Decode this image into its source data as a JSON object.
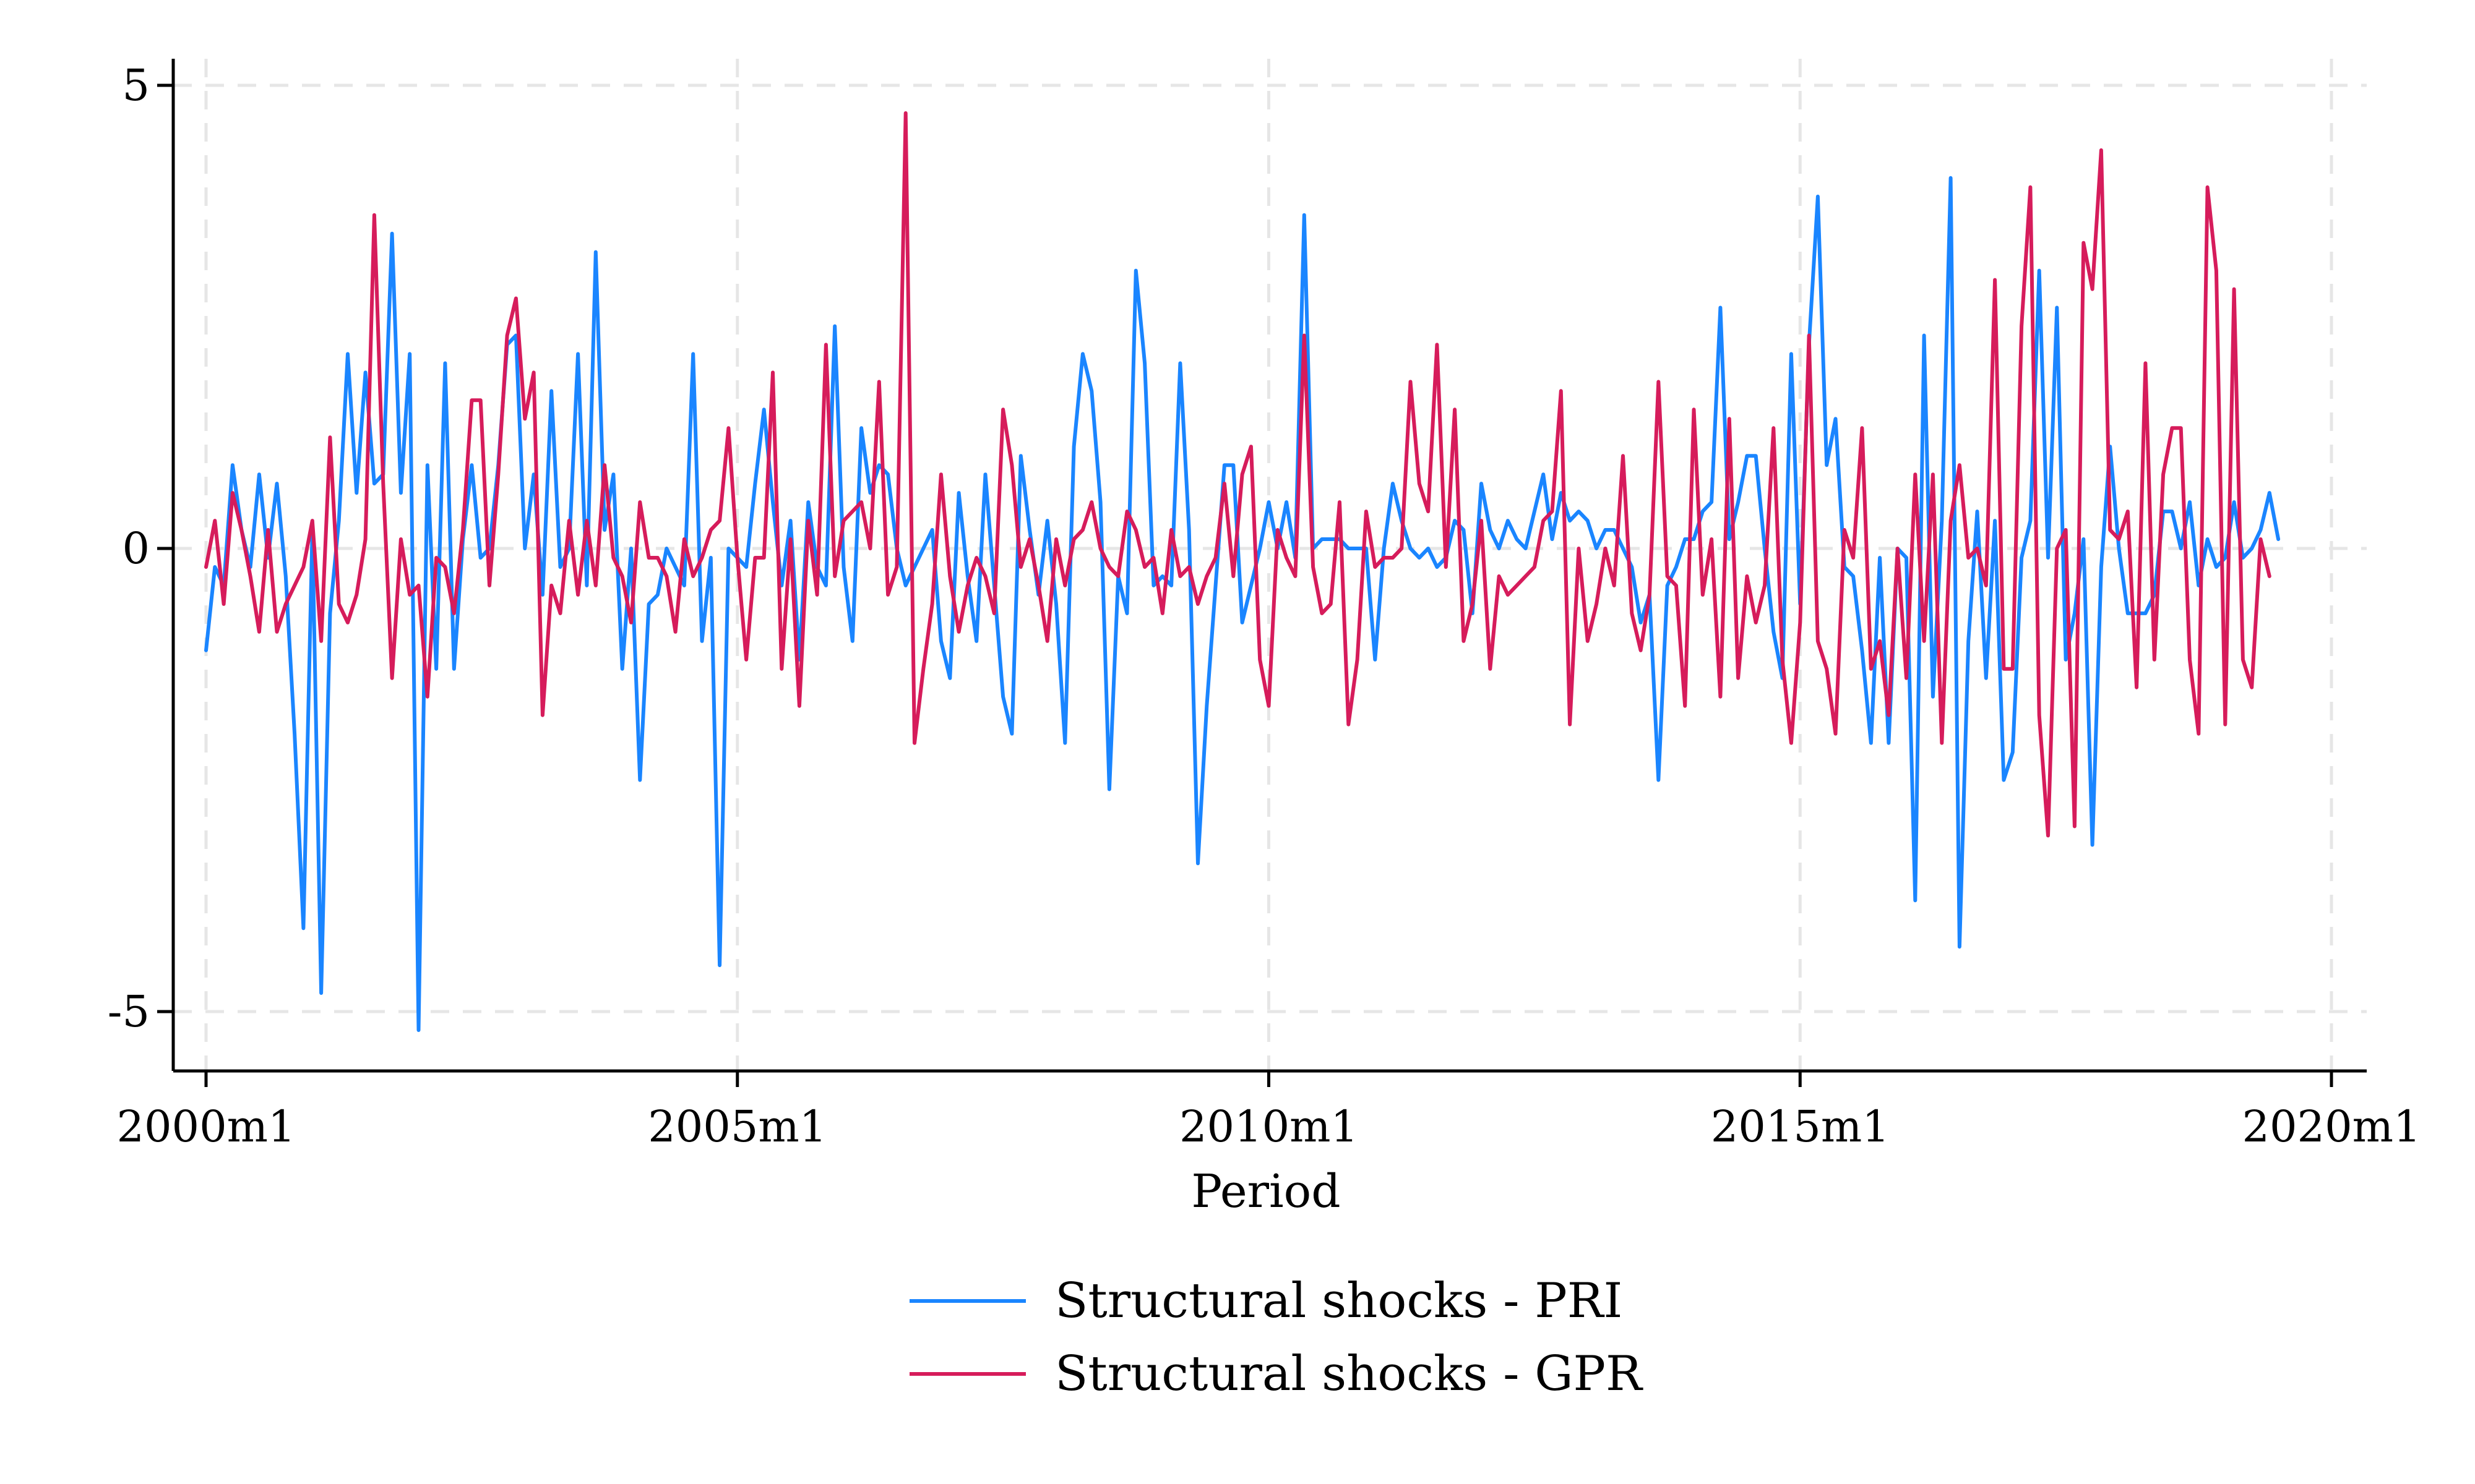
{
  "chart_data": {
    "type": "line",
    "title": "",
    "xlabel": "Period",
    "ylabel": "",
    "xlim": [
      "2000m1",
      "2020m1"
    ],
    "ylim": [
      -5.6,
      5.2
    ],
    "x_ticks": [
      "2000m1",
      "2005m1",
      "2010m1",
      "2015m1",
      "2020m1"
    ],
    "y_ticks": [
      {
        "value": 5,
        "label": "5"
      },
      {
        "value": 0,
        "label": "0"
      },
      {
        "value": -5,
        "label": "-5"
      }
    ],
    "grid": true,
    "legend_position": "bottom",
    "x_start": "2000m1",
    "x_frequency": "monthly",
    "series": [
      {
        "name": "Structural shocks - PRI",
        "color": "#1a85ff",
        "values": [
          -1.1,
          -0.2,
          -0.4,
          0.9,
          0.2,
          -0.2,
          0.8,
          -0.1,
          0.7,
          -0.3,
          -2.0,
          -4.1,
          0.2,
          -4.8,
          -0.7,
          0.3,
          2.1,
          0.6,
          1.9,
          0.7,
          0.8,
          3.4,
          0.6,
          2.1,
          -5.2,
          0.9,
          -1.3,
          2.0,
          -1.3,
          0.1,
          0.9,
          -0.1,
          0.0,
          0.9,
          2.2,
          2.3,
          0.0,
          0.8,
          -0.5,
          1.7,
          -0.2,
          0.0,
          2.1,
          -0.4,
          3.2,
          0.2,
          0.8,
          -1.3,
          0.0,
          -2.5,
          -0.6,
          -0.5,
          0.0,
          -0.2,
          -0.4,
          2.1,
          -1.0,
          -0.1,
          -4.5,
          0.0,
          -0.1,
          -0.2,
          0.7,
          1.5,
          0.5,
          -0.4,
          0.3,
          -1.2,
          0.5,
          -0.2,
          -0.4,
          2.4,
          -0.2,
          -1.0,
          1.3,
          0.6,
          0.9,
          0.8,
          0.0,
          -0.4,
          -0.2,
          0.0,
          0.2,
          -1.0,
          -1.4,
          0.6,
          -0.3,
          -1.0,
          0.8,
          -0.4,
          -1.6,
          -2.0,
          1.0,
          0.2,
          -0.5,
          0.3,
          -0.6,
          -2.1,
          1.1,
          2.1,
          1.7,
          0.5,
          -2.6,
          -0.3,
          -0.7,
          3.0,
          2.0,
          -0.4,
          -0.3,
          -0.4,
          2.0,
          0.2,
          -3.4,
          -1.7,
          -0.4,
          0.9,
          0.9,
          -0.8,
          -0.4,
          0.0,
          0.5,
          0.0,
          0.5,
          -0.1,
          3.6,
          0.0,
          0.1,
          0.1,
          0.1,
          0.0,
          0.0,
          0.0,
          -1.2,
          0.0,
          0.7,
          0.3,
          0.0,
          -0.1,
          0.0,
          -0.2,
          -0.1,
          0.3,
          0.2,
          -0.7,
          0.7,
          0.2,
          0.0,
          0.3,
          0.1,
          0.0,
          0.4,
          0.8,
          0.1,
          0.6,
          0.3,
          0.4,
          0.3,
          0.0,
          0.2,
          0.2,
          0.0,
          -0.2,
          -0.8,
          -0.5,
          -2.5,
          -0.4,
          -0.2,
          0.1,
          0.1,
          0.4,
          0.5,
          2.6,
          0.1,
          0.5,
          1.0,
          1.0,
          0.0,
          -0.9,
          -1.4,
          2.1,
          -0.6,
          2.2,
          3.8,
          0.9,
          1.4,
          -0.2,
          -0.3,
          -1.1,
          -2.1,
          -0.1,
          -2.1,
          0.0,
          -0.1,
          -3.8,
          2.3,
          -1.6,
          0.3,
          4.0,
          -4.3,
          -1.0,
          0.4,
          -1.4,
          0.3,
          -2.5,
          -2.2,
          -0.1,
          0.3,
          3.0,
          -0.1,
          2.6,
          -1.2,
          -0.7,
          0.1,
          -3.2,
          -0.2,
          1.1,
          0.0,
          -0.7,
          -0.7,
          -0.7,
          -0.5,
          0.4,
          0.4,
          0.0,
          0.5,
          -0.4,
          0.1,
          -0.2,
          -0.1,
          0.5,
          -0.1,
          0.0,
          0.2,
          0.6,
          0.1
        ]
      },
      {
        "name": "Structural shocks - GPR",
        "color": "#d61c5b",
        "values": [
          -0.2,
          0.3,
          -0.6,
          0.6,
          0.2,
          -0.3,
          -0.9,
          0.2,
          -0.9,
          -0.6,
          -0.4,
          -0.2,
          0.3,
          -1.0,
          1.2,
          -0.6,
          -0.8,
          -0.5,
          0.1,
          3.6,
          0.7,
          -1.4,
          0.1,
          -0.5,
          -0.4,
          -1.6,
          -0.1,
          -0.2,
          -0.7,
          0.2,
          1.6,
          1.6,
          -0.4,
          0.8,
          2.3,
          2.7,
          1.4,
          1.9,
          -1.8,
          -0.4,
          -0.7,
          0.3,
          -0.5,
          0.3,
          -0.4,
          0.9,
          -0.1,
          -0.3,
          -0.8,
          0.5,
          -0.1,
          -0.1,
          -0.3,
          -0.9,
          0.1,
          -0.3,
          -0.1,
          0.2,
          0.3,
          1.3,
          -0.1,
          -1.2,
          -0.1,
          -0.1,
          1.9,
          -1.3,
          0.1,
          -1.7,
          0.3,
          -0.5,
          2.2,
          -0.3,
          0.3,
          0.4,
          0.5,
          0.0,
          1.8,
          -0.5,
          -0.2,
          4.7,
          -2.1,
          -1.3,
          -0.6,
          0.8,
          -0.3,
          -0.9,
          -0.4,
          -0.1,
          -0.3,
          -0.7,
          1.5,
          0.9,
          -0.2,
          0.1,
          -0.4,
          -1.0,
          0.1,
          -0.4,
          0.1,
          0.2,
          0.5,
          0.0,
          -0.2,
          -0.3,
          0.4,
          0.2,
          -0.2,
          -0.1,
          -0.7,
          0.2,
          -0.3,
          -0.2,
          -0.6,
          -0.3,
          -0.1,
          0.7,
          -0.3,
          0.8,
          1.1,
          -1.2,
          -1.7,
          0.2,
          -0.1,
          -0.3,
          2.3,
          -0.2,
          -0.7,
          -0.6,
          0.5,
          -1.9,
          -1.2,
          0.4,
          -0.2,
          -0.1,
          -0.1,
          0.0,
          1.8,
          0.7,
          0.4,
          2.2,
          -0.2,
          1.5,
          -1.0,
          -0.6,
          0.3,
          -1.3,
          -0.3,
          -0.5,
          -0.4,
          -0.3,
          -0.2,
          0.3,
          0.4,
          1.7,
          -1.9,
          0.0,
          -1.0,
          -0.6,
          0.0,
          -0.4,
          1.0,
          -0.7,
          -1.1,
          -0.5,
          1.8,
          -0.3,
          -0.4,
          -1.7,
          1.5,
          -0.5,
          0.1,
          -1.6,
          1.4,
          -1.4,
          -0.3,
          -0.8,
          -0.4,
          1.3,
          -1.2,
          -2.1,
          -0.8,
          2.3,
          -1.0,
          -1.3,
          -2.0,
          0.2,
          -0.1,
          1.3,
          -1.3,
          -1.0,
          -1.8,
          0.0,
          -1.4,
          0.8,
          -1.0,
          0.8,
          -2.1,
          0.3,
          0.9,
          -0.1,
          0.0,
          -0.4,
          2.9,
          -1.3,
          -1.3,
          2.4,
          3.9,
          -1.8,
          -3.1,
          0.0,
          0.2,
          -3.0,
          3.3,
          2.8,
          4.3,
          0.2,
          0.1,
          0.4,
          -1.5,
          2.0,
          -1.2,
          0.8,
          1.3,
          1.3,
          -1.2,
          -2.0,
          3.9,
          3.0,
          -1.9,
          2.8,
          -1.2,
          -1.5,
          0.1,
          -0.3
        ]
      }
    ]
  }
}
